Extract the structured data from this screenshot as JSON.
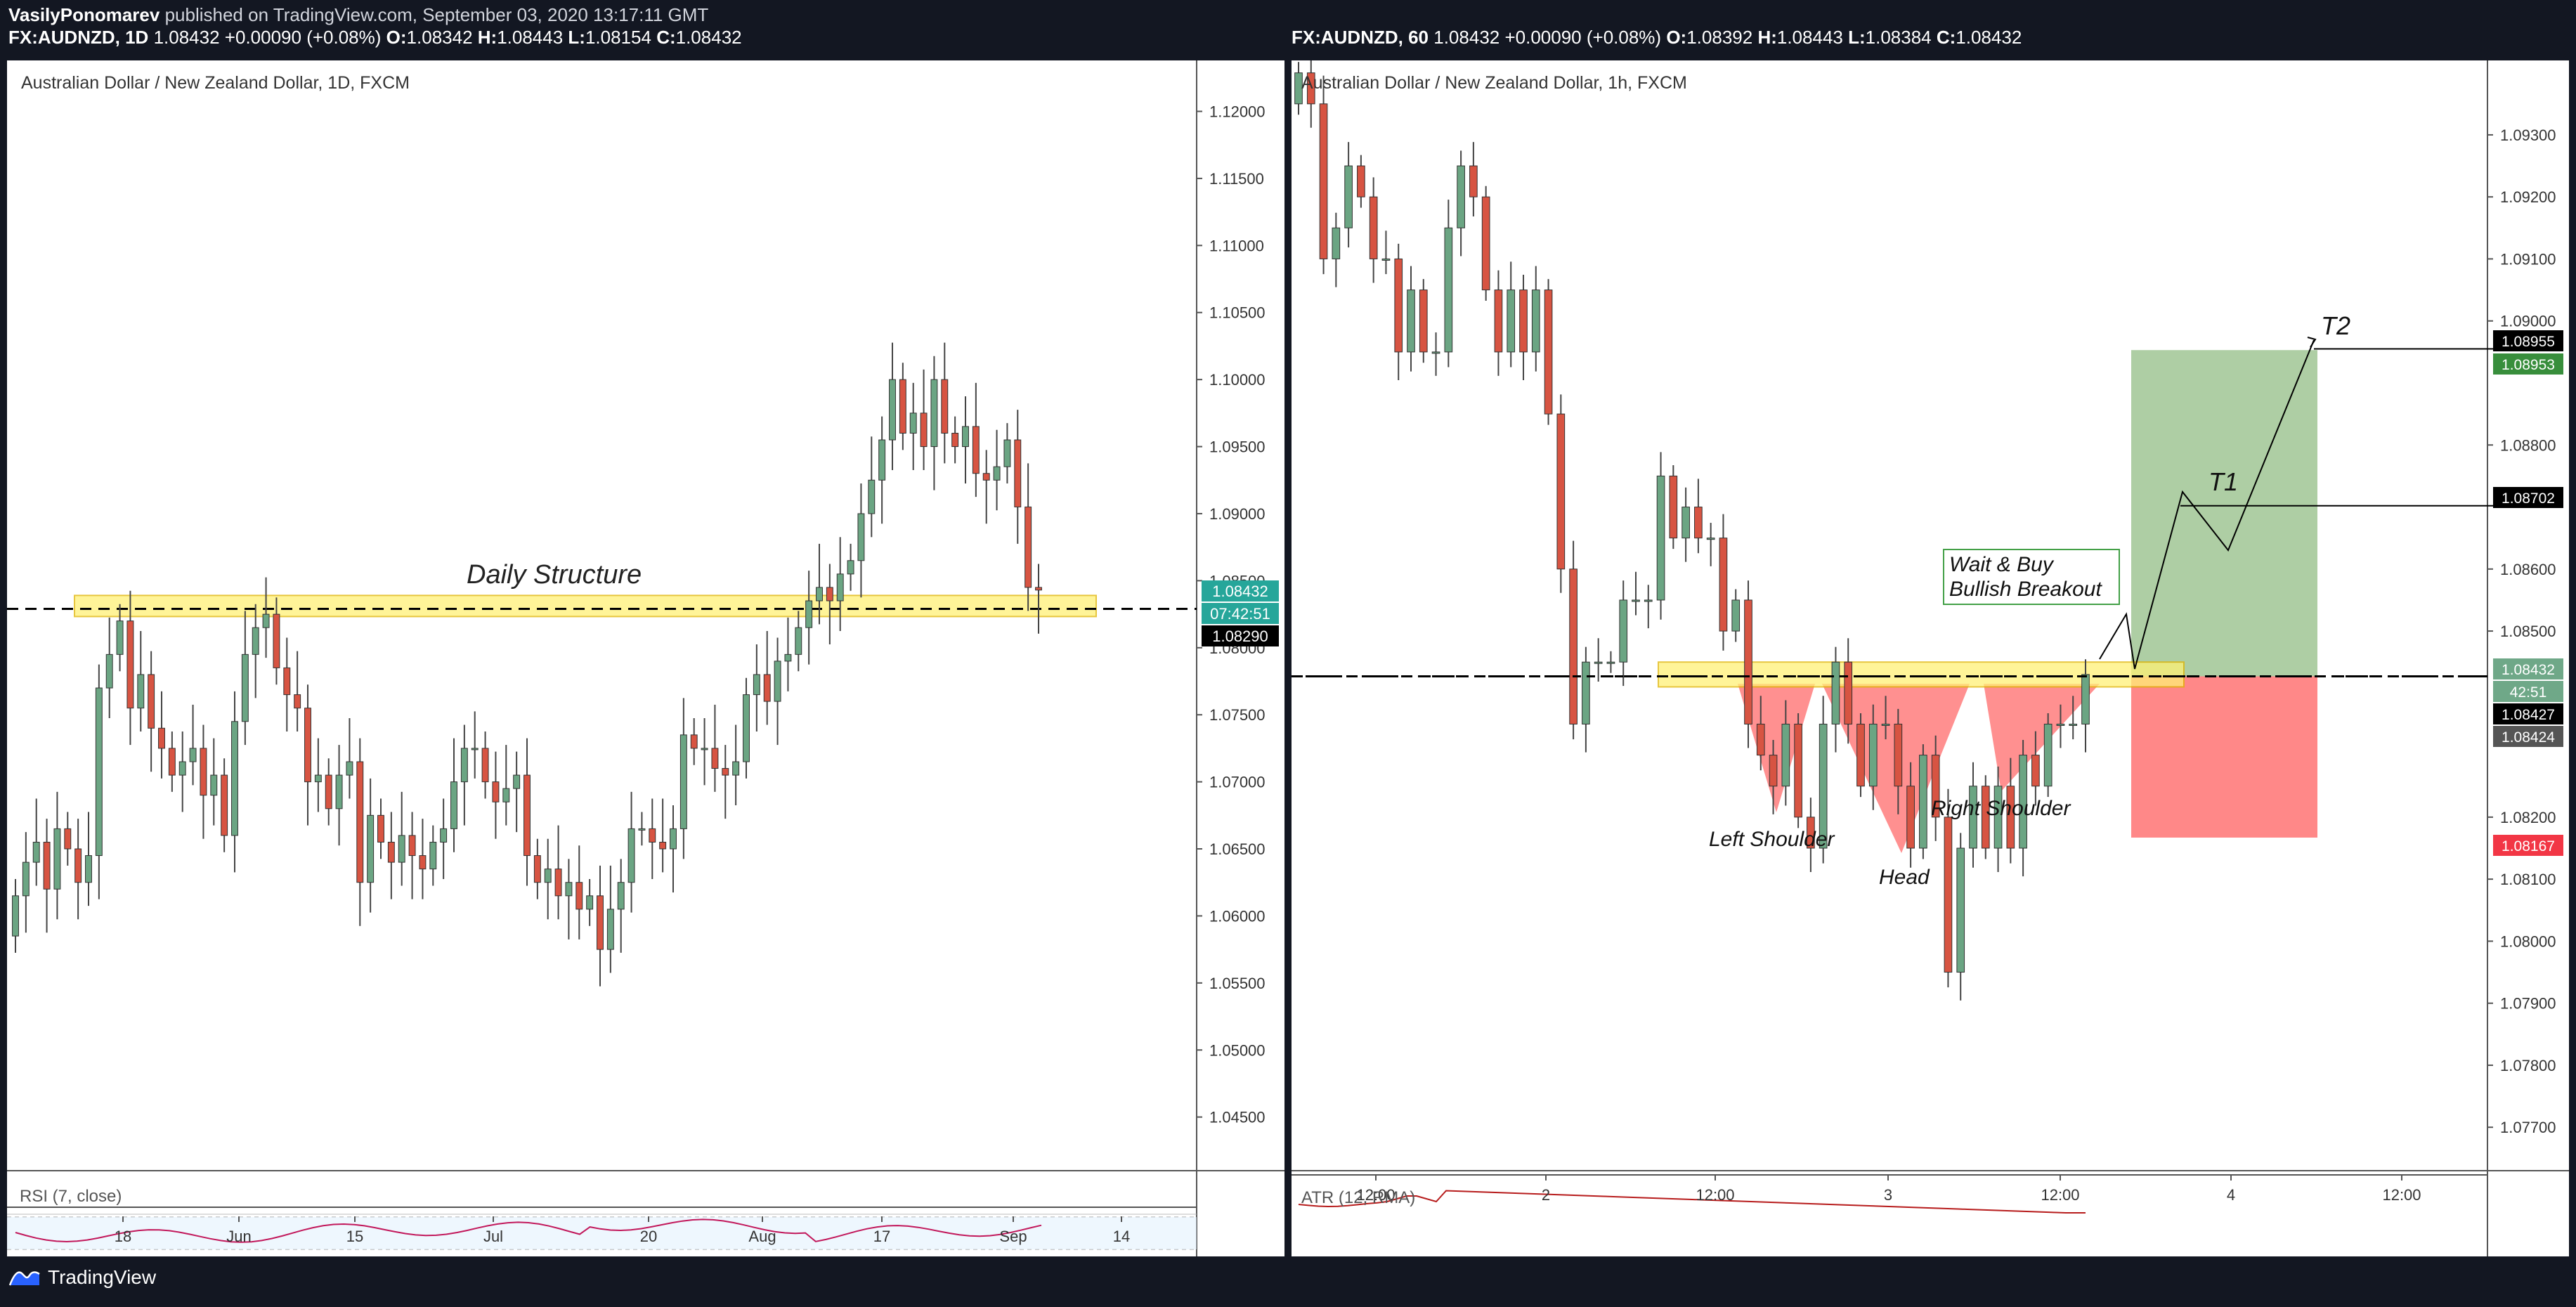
{
  "header": {
    "author": "VasilyPonomarev",
    "publish_text": " published on TradingView.com, September 03, 2020 13:17:11 GMT"
  },
  "left_chart": {
    "quote": {
      "symbol": "FX:AUDNZD, 1D",
      "last": "1.08432",
      "change": "+0.00090 (+0.08%)",
      "o_label": "O:",
      "o": "1.08342",
      "h_label": "H:",
      "h": "1.08443",
      "l_label": "L:",
      "l": "1.08154",
      "c_label": "C:",
      "c": "1.08432"
    },
    "title": "Australian Dollar / New Zealand Dollar, 1D, FXCM",
    "annotation": "Daily Structure",
    "indicator": "RSI (7, close)",
    "price_tags": {
      "last": "1.08432",
      "countdown": "07:42:51",
      "line": "1.08290"
    },
    "price_tag_colors": {
      "last": "#26a69a",
      "line": "#000000"
    }
  },
  "right_chart": {
    "quote": {
      "symbol": "FX:AUDNZD, 60",
      "last": "1.08432",
      "change": "+0.00090 (+0.08%)",
      "o_label": "O:",
      "o": "1.08392",
      "h_label": "H:",
      "h": "1.08443",
      "l_label": "L:",
      "l": "1.08384",
      "c_label": "C:",
      "c": "1.08432"
    },
    "title": "Australian Dollar / New Zealand Dollar, 1h, FXCM",
    "annotations": {
      "callout_line1": "Wait & Buy",
      "callout_line2": "Bullish Breakout",
      "t1": "T1",
      "t2": "T2",
      "left_shoulder": "Left Shoulder",
      "head": "Head",
      "right_shoulder": "Right Shoulder"
    },
    "indicator": "ATR (12, RMA)",
    "price_tags": {
      "t2": "1.08955",
      "target": "1.08953",
      "t1": "1.08702",
      "last": "1.08432",
      "countdown": "42:51",
      "line": "1.08427",
      "bid": "1.08424",
      "stop": "1.08167"
    },
    "price_tag_colors": {
      "target": "#388e3c",
      "stop": "#f23645",
      "last": "#6fa888",
      "line": "#000000",
      "bid": "#555555"
    }
  },
  "footer": {
    "brand": "TradingView",
    "logo_icon": "tradingview-logo-icon"
  },
  "colors": {
    "up": "#6ba583",
    "down": "#d75442",
    "zone": "#fff176",
    "profit": "#a5c99a",
    "loss": "#ff7b7b"
  },
  "chart_data": [
    {
      "type": "candlestick",
      "title": "Australian Dollar / New Zealand Dollar, 1D, FXCM",
      "ylim": [
        1.041,
        1.1238
      ],
      "y_ticks": [
        "1.12000",
        "1.11500",
        "1.11000",
        "1.10500",
        "1.10000",
        "1.09500",
        "1.09000",
        "1.08500",
        "1.08000",
        "1.07500",
        "1.07000",
        "1.06500",
        "1.06000",
        "1.05500",
        "1.05000",
        "1.04500"
      ],
      "x_ticks": [
        "18",
        "Jun",
        "15",
        "Jul",
        "20",
        "Aug",
        "17",
        "Sep",
        "14"
      ],
      "structure_zone": [
        1.0828,
        1.0839
      ],
      "dashed_line": 1.0829,
      "close_series": [
        1.0615,
        1.064,
        1.0655,
        1.062,
        1.0665,
        1.065,
        1.0625,
        1.0645,
        1.077,
        1.0795,
        1.082,
        1.0755,
        1.078,
        1.074,
        1.0725,
        1.0705,
        1.0715,
        1.0725,
        1.069,
        1.0705,
        1.066,
        1.0745,
        1.0795,
        1.0815,
        1.0825,
        1.0785,
        1.0765,
        1.0755,
        1.07,
        1.0705,
        1.068,
        1.0705,
        1.0715,
        1.0625,
        1.0675,
        1.0655,
        1.064,
        1.066,
        1.0645,
        1.0635,
        1.0655,
        1.0665,
        1.07,
        1.0725,
        1.0725,
        1.07,
        1.0685,
        1.0695,
        1.0705,
        1.0645,
        1.0625,
        1.0635,
        1.0615,
        1.0625,
        1.0605,
        1.0615,
        1.0575,
        1.0605,
        1.0625,
        1.0665,
        1.0665,
        1.0655,
        1.065,
        1.0665,
        1.0735,
        1.0725,
        1.0725,
        1.071,
        1.0705,
        1.0715,
        1.0765,
        1.078,
        1.076,
        1.079,
        1.0795,
        1.0815,
        1.0835,
        1.0845,
        1.0835,
        1.0855,
        1.0865,
        1.09,
        1.0925,
        1.0955,
        1.1,
        1.096,
        1.0975,
        1.095,
        1.1,
        1.096,
        1.095,
        1.0965,
        1.093,
        1.0925,
        1.0935,
        1.0955,
        1.0905,
        1.0845,
        1.0843
      ],
      "rsi_ylim": [
        0,
        100
      ]
    },
    {
      "type": "candlestick",
      "title": "Australian Dollar / New Zealand Dollar, 1h, FXCM",
      "ylim": [
        1.0763,
        1.0942
      ],
      "y_ticks": [
        "1.09300",
        "1.09200",
        "1.09100",
        "1.09000",
        "1.08800",
        "1.08600",
        "1.08500",
        "1.08200",
        "1.08100",
        "1.08000",
        "1.07900",
        "1.07800",
        "1.07700"
      ],
      "x_ticks": [
        "12:00",
        "2",
        "12:00",
        "3",
        "12:00",
        "4",
        "12:00"
      ],
      "structure_zone": [
        1.0841,
        1.0845
      ],
      "dashed_line": 1.08427,
      "long_position": {
        "entry": 1.08427,
        "target": 1.08953,
        "stop": 1.08167
      },
      "close_series": [
        1.094,
        1.0935,
        1.091,
        1.0915,
        1.0925,
        1.092,
        1.091,
        1.091,
        1.0895,
        1.0905,
        1.0895,
        1.0895,
        1.0915,
        1.0925,
        1.092,
        1.0905,
        1.0895,
        1.0905,
        1.0895,
        1.0905,
        1.0885,
        1.086,
        1.0835,
        1.0845,
        1.0845,
        1.0845,
        1.0855,
        1.0855,
        1.0855,
        1.0875,
        1.0865,
        1.087,
        1.0865,
        1.0865,
        1.085,
        1.0855,
        1.0835,
        1.083,
        1.0825,
        1.0835,
        1.082,
        1.0815,
        1.0835,
        1.0845,
        1.0835,
        1.0825,
        1.0835,
        1.0835,
        1.0825,
        1.0815,
        1.083,
        1.082,
        1.0795,
        1.0815,
        1.0825,
        1.0815,
        1.0825,
        1.0815,
        1.083,
        1.0825,
        1.0835,
        1.0835,
        1.0835,
        1.0843
      ],
      "atr_ylim": [
        0,
        1
      ]
    }
  ]
}
